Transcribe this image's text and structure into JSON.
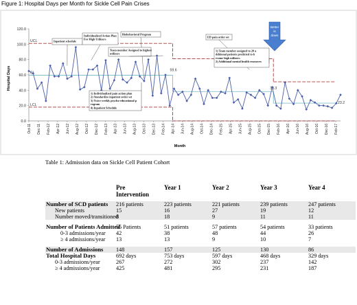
{
  "figure_caption": "Figure 1: Hospital Days per Month for Sickle Cell Pain Crises",
  "colors": {
    "series": "#4a5fa8",
    "limit_line": "#a83a3a",
    "center_line": "#6fb6c9",
    "arrow": "#4a7fd0",
    "table_shade": "#e8e8e8"
  },
  "chart_data": {
    "type": "line",
    "title": "",
    "xlabel": "Month",
    "ylabel": "Hospital Days",
    "ylim": [
      0,
      120
    ],
    "yticks": [
      "0.0",
      "20.0",
      "40.0",
      "60.0",
      "80.0",
      "100.0",
      "120.0"
    ],
    "xticks": [
      "Oct-11",
      "Dec-11",
      "Feb-12",
      "Apr-12",
      "Jun-12",
      "Aug-12",
      "Oct-12",
      "Dec-12",
      "Feb-13",
      "Apr-13",
      "Jun-13",
      "Aug-13",
      "Oct-13",
      "Dec-13",
      "Feb-14",
      "Apr-14",
      "Jun-14",
      "Aug-14",
      "Oct-14",
      "Dec-14",
      "Feb-15",
      "Apr-15",
      "Jun-15",
      "Aug-15",
      "Oct-15",
      "Dec-15",
      "Feb-16",
      "Apr-16",
      "Jun-16",
      "Aug-16",
      "Oct-16",
      "Dec-16",
      "Feb-17"
    ],
    "series": [
      {
        "values": [
          65,
          62,
          42,
          50,
          26,
          72,
          58,
          58,
          75,
          55,
          58,
          96,
          41,
          44,
          67,
          67,
          72,
          40,
          79,
          42,
          53,
          80,
          54,
          50,
          56,
          77,
          58,
          52,
          80,
          33,
          85,
          36,
          60,
          20,
          42,
          34,
          38,
          26,
          34,
          55,
          42,
          22,
          40,
          30,
          30,
          38,
          36,
          56,
          24,
          28,
          16,
          37,
          34,
          30,
          40,
          35,
          20,
          44,
          20,
          16,
          50,
          29,
          22,
          40,
          32,
          15,
          27,
          24,
          20,
          20,
          19,
          17,
          23,
          34
        ]
      }
    ],
    "ucl_segments": [
      {
        "x_start": "Oct-11",
        "x_end": "Apr-14",
        "value": 101
      },
      {
        "x_start": "Apr-14",
        "x_end": "Jan-16",
        "value": 81
      },
      {
        "x_start": "Jan-16",
        "x_end": "Feb-17",
        "value": 51
      }
    ],
    "lcl_segments": [
      {
        "x_start": "Oct-11",
        "x_end": "Apr-14",
        "value": 18
      },
      {
        "x_start": "Apr-14",
        "x_end": "Feb-17",
        "value": 0
      }
    ],
    "cl_segments": [
      {
        "x_start": "Oct-11",
        "x_end": "Apr-14",
        "value": 59.6
      },
      {
        "x_start": "Apr-14",
        "x_end": "Jan-16",
        "value": 38.3
      },
      {
        "x_start": "Jan-16",
        "x_end": "Feb-17",
        "value": 23.2
      }
    ],
    "line_labels": {
      "ucl": "UCL",
      "cl": "CL",
      "lcl": "LCL"
    },
    "value_labels": [
      "59.6",
      "38.3",
      "23.2"
    ],
    "annotations": [
      "Inpatient schedule",
      "Individualized Action Plan For High Utilizers",
      "Biobehavioral Program",
      "Team member Assigned to highest utilizers",
      "ED pain order set",
      "1) Team member assigned to 20 additional patients predicted to become high utilizers\n2) Additional mental health resources",
      "1) Individualized pain action plan\n2) Standardize inpatient order set\n3) Twice weekly psycho-educational program\n4) Inpatient Schedule"
    ],
    "arrow_text": "Better is down",
    "grid": false
  },
  "table_caption": "Table 1: Admission data on Sickle Cell Patient Cohort",
  "table": {
    "columns": [
      "",
      "Pre Intervention",
      "Year 1",
      "Year 2",
      "Year 3",
      "Year 4"
    ],
    "rows": [
      {
        "style": "bold shade",
        "cells": [
          "Number of SCD patients",
          "216 patients",
          "223 patients",
          "221 patients",
          "239 patients",
          "247 patients"
        ]
      },
      {
        "style": "child shade",
        "cells": [
          "New patients",
          "15",
          "16",
          "27",
          "19",
          "12"
        ]
      },
      {
        "style": "child shade",
        "cells": [
          "Number moved/transitioned",
          "8",
          "18",
          "9",
          "11",
          "11"
        ]
      },
      {
        "style": "bold",
        "cells": [
          "Number of Patients Admitted",
          "55 Patients",
          "51 patients",
          "57 patients",
          "54 patients",
          "33 patients"
        ]
      },
      {
        "style": "child2",
        "cells": [
          "0-3 admissions/year",
          "42",
          "38",
          "48",
          "44",
          "26"
        ]
      },
      {
        "style": "child2",
        "cells": [
          "≥ 4 admissions/year",
          "13",
          "13",
          "9",
          "10",
          "7"
        ]
      },
      {
        "style": "bold shade",
        "cells": [
          "Number of Admissions",
          "148",
          "157",
          "125",
          "130",
          "86"
        ]
      },
      {
        "style": "bold",
        "cells": [
          "Total Hospital Days",
          "692 days",
          "753 days",
          "597 days",
          "468 days",
          "329 days"
        ]
      },
      {
        "style": "child",
        "cells": [
          "0-3 admissions/year",
          "267",
          "272",
          "302",
          "237",
          "142"
        ]
      },
      {
        "style": "child",
        "cells": [
          "≥ 4 admissions/year",
          "425",
          "481",
          "295",
          "231",
          "187"
        ]
      }
    ]
  }
}
